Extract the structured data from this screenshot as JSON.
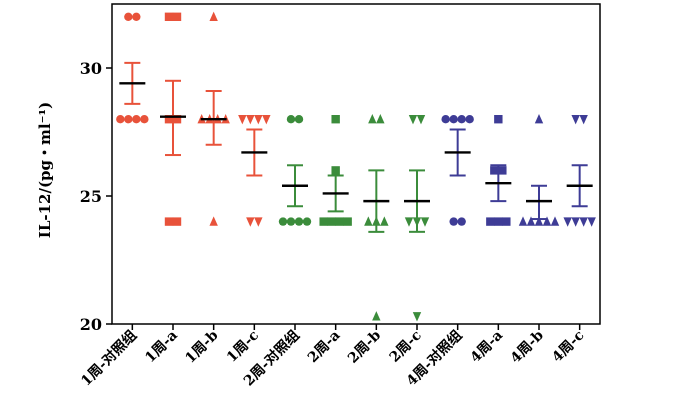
{
  "chart_data": {
    "type": "scatter",
    "subtype": "dot-plot-mean-sem",
    "ylabel": "IL-12/(pg・ml⁻¹)",
    "ylim": [
      20,
      32.5
    ],
    "yticks": [
      20,
      25,
      30
    ],
    "grid": false,
    "legend": "none",
    "categories": [
      "1周-对照组",
      "1周-a",
      "1周-b",
      "1周-c",
      "2周-对照组",
      "2周-a",
      "2周-b",
      "2周-c",
      "4周-对照组",
      "4周-a",
      "4周-b",
      "4周-c"
    ],
    "groups": [
      {
        "category": "1周-对照组",
        "color": "#E8523A",
        "marker": "circle",
        "points": [
          32,
          32,
          28,
          28,
          28,
          28
        ],
        "mean": 29.4,
        "sem_low": 28.6,
        "sem_high": 30.2
      },
      {
        "category": "1周-a",
        "color": "#E8523A",
        "marker": "square",
        "points": [
          32,
          32,
          28,
          28,
          24,
          24
        ],
        "mean": 28.1,
        "sem_low": 26.6,
        "sem_high": 29.5
      },
      {
        "category": "1周-b",
        "color": "#E8523A",
        "marker": "triangle-up",
        "points": [
          32,
          28,
          28,
          28,
          28,
          24
        ],
        "mean": 28.0,
        "sem_low": 27.0,
        "sem_high": 29.1
      },
      {
        "category": "1周-c",
        "color": "#E8523A",
        "marker": "triangle-down",
        "points": [
          28,
          28,
          28,
          28,
          24,
          24
        ],
        "mean": 26.7,
        "sem_low": 25.8,
        "sem_high": 27.6
      },
      {
        "category": "2周-对照组",
        "color": "#3B8C3B",
        "marker": "circle",
        "points": [
          28,
          28,
          24,
          24,
          24,
          24
        ],
        "mean": 25.4,
        "sem_low": 24.6,
        "sem_high": 26.2
      },
      {
        "category": "2周-a",
        "color": "#3B8C3B",
        "marker": "square",
        "points": [
          28,
          26,
          24,
          24,
          24,
          24
        ],
        "mean": 25.1,
        "sem_low": 24.4,
        "sem_high": 25.8
      },
      {
        "category": "2周-b",
        "color": "#3B8C3B",
        "marker": "triangle-up",
        "points": [
          28,
          28,
          24,
          24,
          24,
          20.3
        ],
        "mean": 24.8,
        "sem_low": 23.6,
        "sem_high": 26.0
      },
      {
        "category": "2周-c",
        "color": "#3B8C3B",
        "marker": "triangle-down",
        "points": [
          28,
          28,
          24,
          24,
          24,
          20.3
        ],
        "mean": 24.8,
        "sem_low": 23.6,
        "sem_high": 26.0
      },
      {
        "category": "4周-对照组",
        "color": "#3E3C96",
        "marker": "circle",
        "points": [
          28,
          28,
          28,
          28,
          24,
          24
        ],
        "mean": 26.7,
        "sem_low": 25.8,
        "sem_high": 27.6
      },
      {
        "category": "4周-a",
        "color": "#3E3C96",
        "marker": "square",
        "points": [
          28,
          26,
          26,
          24,
          24,
          24
        ],
        "mean": 25.5,
        "sem_low": 24.8,
        "sem_high": 26.2
      },
      {
        "category": "4周-b",
        "color": "#3E3C96",
        "marker": "triangle-up",
        "points": [
          28,
          24,
          24,
          24,
          24,
          24
        ],
        "mean": 24.8,
        "sem_low": 24.1,
        "sem_high": 25.4
      },
      {
        "category": "4周-c",
        "color": "#3E3C96",
        "marker": "triangle-down",
        "points": [
          28,
          28,
          24,
          24,
          24,
          24
        ],
        "mean": 25.4,
        "sem_low": 24.6,
        "sem_high": 26.2
      }
    ]
  }
}
